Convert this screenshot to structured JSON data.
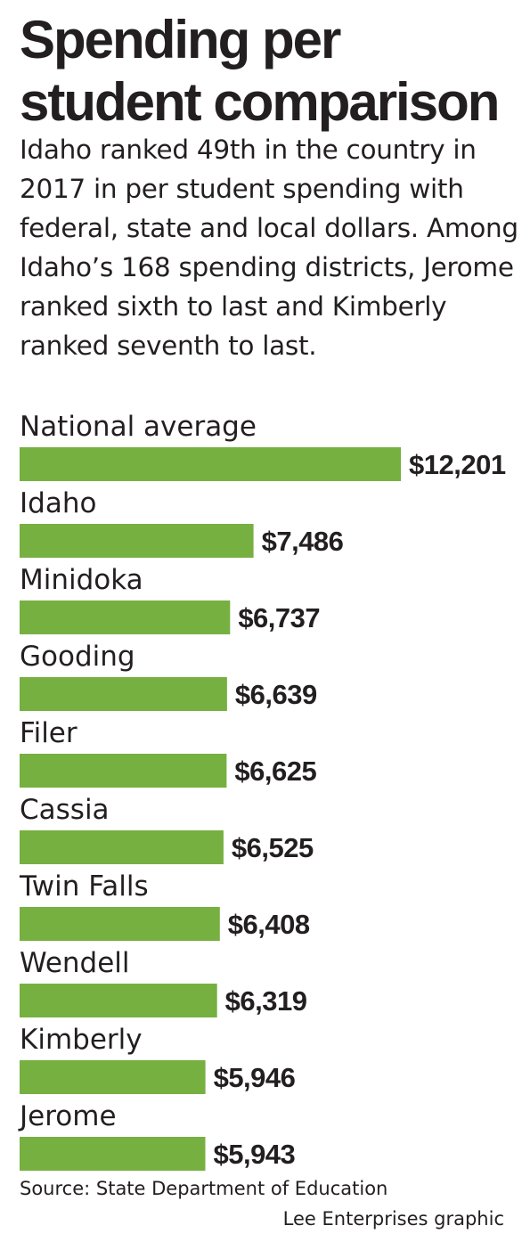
{
  "title": "Spending per student comparison",
  "subtitle": "Idaho ranked 49th in the country in 2017 in per student spending with federal, state and local dollars. Among Idaho’s 168 spending districts, Jerome ranked sixth to last and Kimberly ranked seventh to last.",
  "source": "Source: State Department of Education",
  "credit": "Lee Enterprises graphic",
  "colors": {
    "bar": "#76b041",
    "text": "#231f20"
  },
  "chart_data": {
    "type": "bar",
    "orientation": "horizontal",
    "title": "Spending per student comparison",
    "categories": [
      "National average",
      "Idaho",
      "Minidoka",
      "Gooding",
      "Filer",
      "Cassia",
      "Twin Falls",
      "Wendell",
      "Kimberly",
      "Jerome"
    ],
    "values": [
      12201,
      7486,
      6737,
      6639,
      6625,
      6525,
      6408,
      6319,
      5946,
      5943
    ],
    "value_labels": [
      "$12,201",
      "$7,486",
      "$6,737",
      "$6,639",
      "$6,625",
      "$6,525",
      "$6,408",
      "$6,319",
      "$5,946",
      "$5,943"
    ],
    "xlim": [
      0,
      12201
    ],
    "grid": false,
    "legend": "none"
  }
}
